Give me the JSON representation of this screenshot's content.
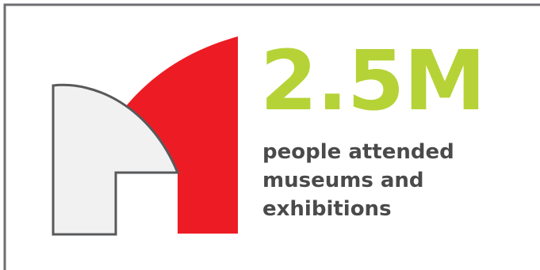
{
  "stat": {
    "value": "2.5M",
    "description_lines": [
      "people attended",
      "museums and",
      "exhibitions"
    ]
  },
  "colors": {
    "accent_green": "#b5d336",
    "brand_red": "#ed1c24",
    "shape_grey": "#f1f1f2",
    "outline_grey": "#58595b",
    "text_grey": "#4a4a4a",
    "frame_grey": "#6d6e71"
  },
  "icon": "museum-logo-icon"
}
